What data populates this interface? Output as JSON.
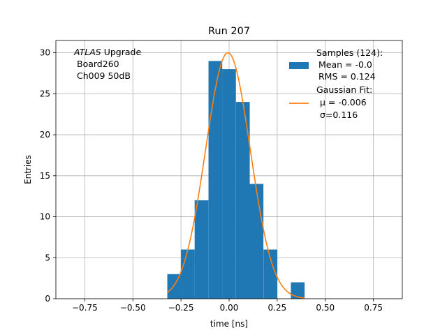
{
  "chart_data": {
    "type": "bar",
    "title": "Run 207",
    "xlabel": "time [ns]",
    "ylabel": "Entries",
    "xlim": [
      -0.9,
      0.9
    ],
    "ylim": [
      0,
      31.5
    ],
    "grid": true,
    "x_ticks": [
      -0.75,
      -0.5,
      -0.25,
      0.0,
      0.25,
      0.5,
      0.75
    ],
    "x_tick_labels": [
      "−0.75",
      "−0.50",
      "−0.25",
      "0.00",
      "0.25",
      "0.50",
      "0.75"
    ],
    "y_ticks": [
      0,
      5,
      10,
      15,
      20,
      25,
      30
    ],
    "y_tick_labels": [
      "0",
      "5",
      "10",
      "15",
      "20",
      "25",
      "30"
    ],
    "annotation": {
      "atlas": "ATLAS",
      "upgrade": " Upgrade",
      "board": "Board260",
      "channel": "Ch009 50dB"
    },
    "histogram": {
      "color": "#1f77b4",
      "bin_width": 0.0714,
      "bins": [
        {
          "x0": -0.321,
          "count": 3
        },
        {
          "x0": -0.25,
          "count": 6
        },
        {
          "x0": -0.179,
          "count": 12
        },
        {
          "x0": -0.107,
          "count": 29
        },
        {
          "x0": -0.036,
          "count": 28
        },
        {
          "x0": 0.036,
          "count": 24
        },
        {
          "x0": 0.107,
          "count": 14
        },
        {
          "x0": 0.179,
          "count": 6
        },
        {
          "x0": 0.25,
          "count": 0
        },
        {
          "x0": 0.321,
          "count": 2
        }
      ]
    },
    "fit": {
      "color": "#ff7f0e",
      "mu": -0.006,
      "sigma": 0.116,
      "amplitude": 30,
      "x_range": [
        -0.321,
        0.393
      ]
    },
    "legend": {
      "position": "top-right",
      "samples_label": "Samples (124):",
      "samples_mean": "Mean = -0.0",
      "samples_rms": "RMS = 0.124",
      "fit_label": "Gaussian Fit:",
      "fit_mu": "μ = -0.006",
      "fit_sigma": "σ=0.116"
    }
  }
}
